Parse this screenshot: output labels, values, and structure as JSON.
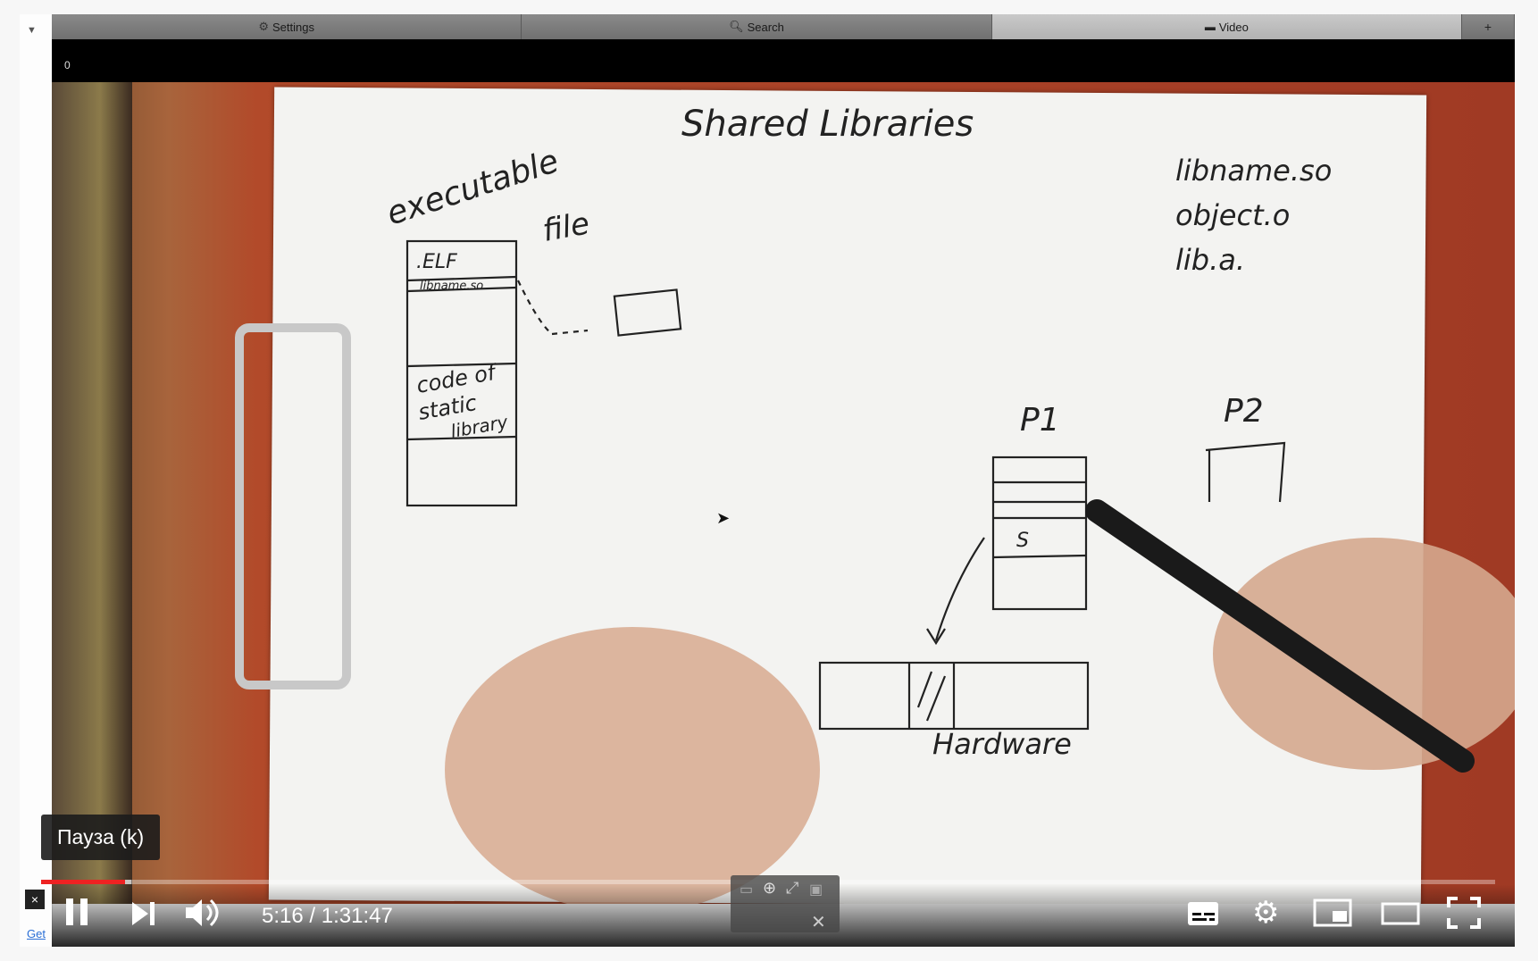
{
  "browser": {
    "menu_toggle": "▼",
    "tabs": [
      {
        "icon": "gear-icon",
        "label": "Settings"
      },
      {
        "icon": "search-icon",
        "label": "Search"
      },
      {
        "icon": "video-icon",
        "label": "Video"
      }
    ],
    "add_tab": "+",
    "counter": "0"
  },
  "video": {
    "whiteboard": {
      "title": "Shared Libraries",
      "exec_label_1": "executable",
      "exec_label_2": "file",
      "elf": ".ELF",
      "libname_row": "libname.so",
      "code_block_1": "code of",
      "code_block_2": "static",
      "code_block_3": "library",
      "right_list": [
        "libname.so",
        "object.o",
        "lib.a."
      ],
      "p1": "P1",
      "p2": "P2",
      "s_label": "S",
      "hardware": "Hardware"
    }
  },
  "player": {
    "tooltip": "Пауза (k)",
    "time_current": "5:16",
    "time_separator": " / ",
    "time_total": "1:31:47",
    "progress_played": 0.058,
    "progress_buffered": 0.062,
    "close": "×",
    "get_link": "Get"
  }
}
